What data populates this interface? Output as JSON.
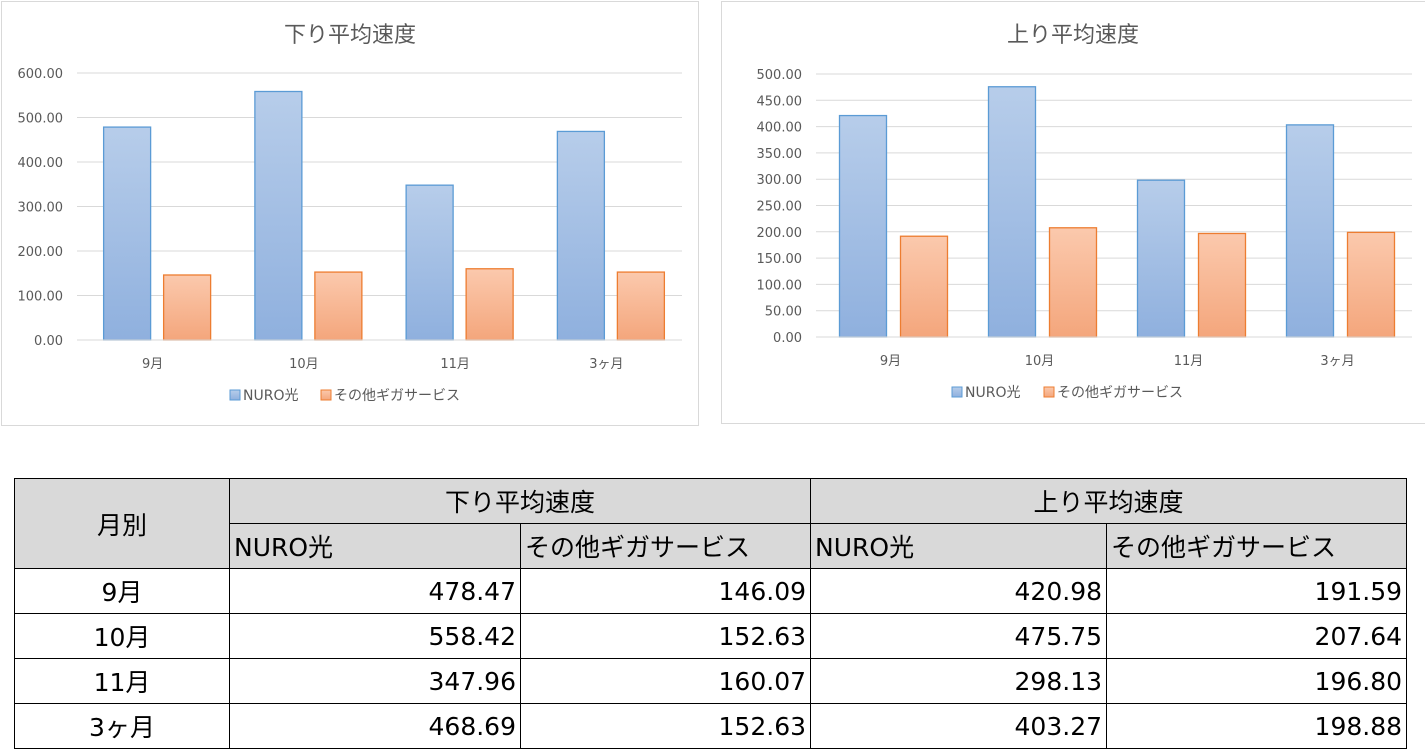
{
  "colors": {
    "nuro_top": "#b7cdea",
    "nuro_bottom": "#8fb0de",
    "nuro_border": "#5b9bd5",
    "other_top": "#fbc9ad",
    "other_bottom": "#f4a67c",
    "other_border": "#ed7d31",
    "grid": "#d9d9d9",
    "header_bg": "#d9d9d9"
  },
  "chart_data": [
    {
      "type": "bar",
      "title": "下り平均速度",
      "categories": [
        "9月",
        "10月",
        "11月",
        "3ヶ月"
      ],
      "series": [
        {
          "name": "NURO光",
          "values": [
            478.47,
            558.42,
            347.96,
            468.69
          ]
        },
        {
          "name": "その他ギガサービス",
          "values": [
            146.09,
            152.63,
            160.07,
            152.63
          ]
        }
      ],
      "ylim": [
        0,
        600
      ],
      "ytick_step": 100,
      "ytick_labels": [
        "0.00",
        "100.00",
        "200.00",
        "300.00",
        "400.00",
        "500.00",
        "600.00"
      ],
      "grid": true,
      "legend": "bottom"
    },
    {
      "type": "bar",
      "title": "上り平均速度",
      "categories": [
        "9月",
        "10月",
        "11月",
        "3ヶ月"
      ],
      "series": [
        {
          "name": "NURO光",
          "values": [
            420.98,
            475.75,
            298.13,
            403.27
          ]
        },
        {
          "name": "その他ギガサービス",
          "values": [
            191.59,
            207.64,
            196.8,
            198.88
          ]
        }
      ],
      "ylim": [
        0,
        500
      ],
      "ytick_step": 50,
      "ytick_labels": [
        "0.00",
        "50.00",
        "100.00",
        "150.00",
        "200.00",
        "250.00",
        "300.00",
        "350.00",
        "400.00",
        "450.00",
        "500.00"
      ],
      "grid": true,
      "legend": "bottom"
    }
  ],
  "table": {
    "month_header": "月別",
    "group_down": "下り平均速度",
    "group_up": "上り平均速度",
    "col_nuro": "NURO光",
    "col_other": "その他ギガサービス",
    "rows": [
      {
        "month": "9月",
        "down_nuro": "478.47",
        "down_other": "146.09",
        "up_nuro": "420.98",
        "up_other": "191.59"
      },
      {
        "month": "10月",
        "down_nuro": "558.42",
        "down_other": "152.63",
        "up_nuro": "475.75",
        "up_other": "207.64"
      },
      {
        "month": "11月",
        "down_nuro": "347.96",
        "down_other": "160.07",
        "up_nuro": "298.13",
        "up_other": "196.80"
      },
      {
        "month": "3ヶ月",
        "down_nuro": "468.69",
        "down_other": "152.63",
        "up_nuro": "403.27",
        "up_other": "198.88"
      }
    ]
  }
}
